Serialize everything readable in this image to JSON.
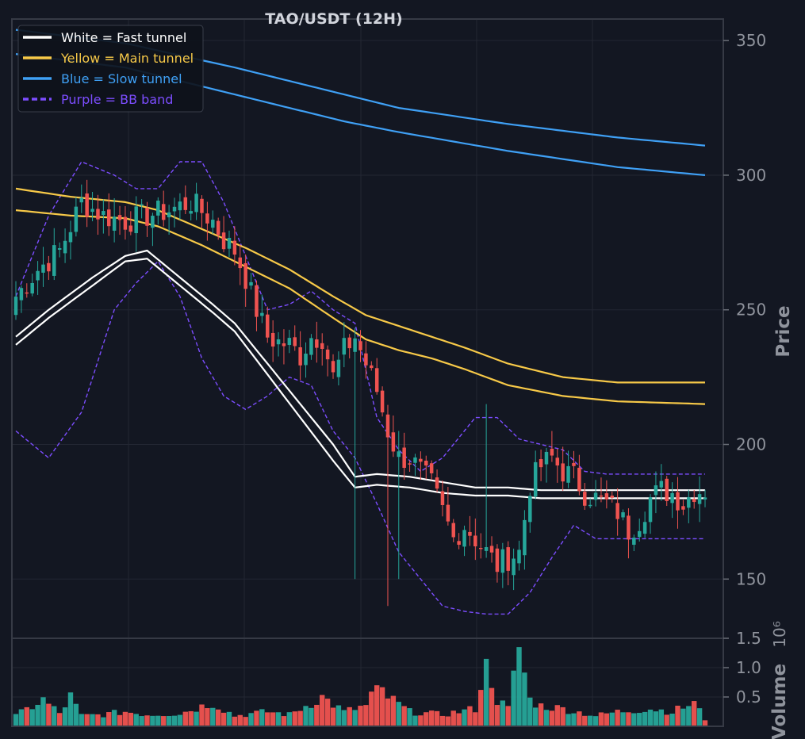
{
  "chart_data": [
    {
      "type": "candlestick",
      "title": "TAO/USDT (12H)",
      "xlabel": "",
      "ylabel": "Price",
      "ylim": [
        128,
        358
      ],
      "yticks": [
        "150",
        "200",
        "250",
        "300",
        "350"
      ],
      "grid": true,
      "legend_position": "top-left",
      "legend": [
        {
          "label": "White = Fast tunnel",
          "color": "#ffffff",
          "style": "solid"
        },
        {
          "label": "Yellow = Main tunnel",
          "color": "#f7c948",
          "style": "solid"
        },
        {
          "label": "Blue = Slow tunnel",
          "color": "#3fa0f5",
          "style": "solid"
        },
        {
          "label": "Purple = BB band",
          "color": "#7c4dff",
          "style": "dashed"
        }
      ],
      "colors": {
        "up": "#26a69a",
        "down": "#ef5350",
        "fast": "#ffffff",
        "main": "#f7c948",
        "slow": "#3fa0f5",
        "bb": "#7c4dff"
      },
      "anchors": {
        "close": [
          [
            0,
            255
          ],
          [
            4,
            265
          ],
          [
            8,
            272
          ],
          [
            12,
            290
          ],
          [
            16,
            285
          ],
          [
            20,
            283
          ],
          [
            24,
            285
          ],
          [
            28,
            287
          ],
          [
            32,
            290
          ],
          [
            36,
            283
          ],
          [
            38,
            276
          ],
          [
            40,
            272
          ],
          [
            42,
            262
          ],
          [
            44,
            250
          ],
          [
            46,
            240
          ],
          [
            48,
            238
          ],
          [
            50,
            237
          ],
          [
            52,
            233
          ],
          [
            54,
            240
          ],
          [
            56,
            240
          ],
          [
            58,
            225
          ],
          [
            60,
            235
          ],
          [
            62,
            240
          ],
          [
            64,
            230
          ],
          [
            66,
            220
          ],
          [
            68,
            205
          ],
          [
            70,
            195
          ],
          [
            72,
            195
          ],
          [
            74,
            190
          ],
          [
            76,
            185
          ],
          [
            78,
            175
          ],
          [
            80,
            165
          ],
          [
            82,
            170
          ],
          [
            84,
            165
          ],
          [
            86,
            160
          ],
          [
            88,
            155
          ],
          [
            90,
            158
          ],
          [
            92,
            160
          ],
          [
            94,
            185
          ],
          [
            96,
            192
          ],
          [
            98,
            195
          ],
          [
            100,
            190
          ],
          [
            102,
            188
          ],
          [
            104,
            182
          ],
          [
            106,
            180
          ],
          [
            108,
            178
          ],
          [
            110,
            175
          ],
          [
            112,
            168
          ],
          [
            114,
            172
          ],
          [
            116,
            180
          ],
          [
            118,
            183
          ],
          [
            120,
            182
          ],
          [
            122,
            178
          ],
          [
            124,
            183
          ],
          [
            126,
            183
          ]
        ],
        "fast_upper": [
          [
            0,
            240
          ],
          [
            6,
            250
          ],
          [
            14,
            262
          ],
          [
            20,
            270
          ],
          [
            24,
            272
          ],
          [
            30,
            262
          ],
          [
            36,
            252
          ],
          [
            40,
            245
          ],
          [
            46,
            230
          ],
          [
            52,
            215
          ],
          [
            58,
            200
          ],
          [
            62,
            188
          ],
          [
            66,
            189
          ],
          [
            72,
            188
          ],
          [
            78,
            186
          ],
          [
            84,
            184
          ],
          [
            90,
            184
          ],
          [
            96,
            183
          ],
          [
            102,
            183
          ],
          [
            108,
            183
          ],
          [
            114,
            183
          ],
          [
            120,
            183
          ],
          [
            126,
            183
          ]
        ],
        "fast_lower": [
          [
            0,
            237
          ],
          [
            6,
            247
          ],
          [
            14,
            259
          ],
          [
            20,
            268
          ],
          [
            24,
            269
          ],
          [
            30,
            259
          ],
          [
            36,
            249
          ],
          [
            40,
            242
          ],
          [
            46,
            226
          ],
          [
            52,
            210
          ],
          [
            58,
            194
          ],
          [
            62,
            184
          ],
          [
            66,
            185
          ],
          [
            72,
            184
          ],
          [
            78,
            182
          ],
          [
            84,
            181
          ],
          [
            90,
            181
          ],
          [
            96,
            180
          ],
          [
            102,
            180
          ],
          [
            108,
            180
          ],
          [
            114,
            180
          ],
          [
            120,
            180
          ],
          [
            126,
            180
          ]
        ],
        "main_upper": [
          [
            0,
            295
          ],
          [
            10,
            292
          ],
          [
            20,
            290
          ],
          [
            26,
            287
          ],
          [
            34,
            280
          ],
          [
            42,
            273
          ],
          [
            50,
            265
          ],
          [
            58,
            255
          ],
          [
            64,
            248
          ],
          [
            70,
            244
          ],
          [
            76,
            240
          ],
          [
            82,
            236
          ],
          [
            90,
            230
          ],
          [
            100,
            225
          ],
          [
            110,
            223
          ],
          [
            126,
            223
          ]
        ],
        "main_lower": [
          [
            0,
            287
          ],
          [
            10,
            285
          ],
          [
            20,
            284
          ],
          [
            26,
            281
          ],
          [
            34,
            274
          ],
          [
            42,
            266
          ],
          [
            50,
            258
          ],
          [
            58,
            247
          ],
          [
            64,
            239
          ],
          [
            70,
            235
          ],
          [
            76,
            232
          ],
          [
            82,
            228
          ],
          [
            90,
            222
          ],
          [
            100,
            218
          ],
          [
            110,
            216
          ],
          [
            126,
            215
          ]
        ],
        "slow_upper": [
          [
            0,
            354
          ],
          [
            20,
            349
          ],
          [
            40,
            340
          ],
          [
            60,
            330
          ],
          [
            70,
            325
          ],
          [
            90,
            319
          ],
          [
            110,
            314
          ],
          [
            126,
            311
          ]
        ],
        "slow_lower": [
          [
            0,
            345
          ],
          [
            20,
            340
          ],
          [
            40,
            330
          ],
          [
            60,
            320
          ],
          [
            70,
            316
          ],
          [
            90,
            309
          ],
          [
            110,
            303
          ],
          [
            126,
            300
          ]
        ],
        "bb_upper": [
          [
            0,
            255
          ],
          [
            6,
            285
          ],
          [
            12,
            305
          ],
          [
            18,
            300
          ],
          [
            22,
            295
          ],
          [
            26,
            295
          ],
          [
            30,
            305
          ],
          [
            34,
            305
          ],
          [
            38,
            290
          ],
          [
            42,
            270
          ],
          [
            46,
            250
          ],
          [
            50,
            252
          ],
          [
            54,
            257
          ],
          [
            58,
            250
          ],
          [
            62,
            245
          ],
          [
            66,
            210
          ],
          [
            70,
            198
          ],
          [
            74,
            190
          ],
          [
            78,
            195
          ],
          [
            84,
            210
          ],
          [
            88,
            210
          ],
          [
            92,
            202
          ],
          [
            96,
            200
          ],
          [
            100,
            198
          ],
          [
            104,
            190
          ],
          [
            108,
            189
          ],
          [
            112,
            189
          ],
          [
            116,
            189
          ],
          [
            126,
            189
          ]
        ],
        "bb_lower": [
          [
            0,
            205
          ],
          [
            6,
            195
          ],
          [
            12,
            212
          ],
          [
            18,
            250
          ],
          [
            22,
            260
          ],
          [
            26,
            268
          ],
          [
            30,
            255
          ],
          [
            34,
            232
          ],
          [
            38,
            218
          ],
          [
            42,
            213
          ],
          [
            46,
            218
          ],
          [
            50,
            225
          ],
          [
            54,
            222
          ],
          [
            58,
            205
          ],
          [
            62,
            195
          ],
          [
            66,
            178
          ],
          [
            70,
            160
          ],
          [
            74,
            150
          ],
          [
            78,
            140
          ],
          [
            82,
            138
          ],
          [
            86,
            137
          ],
          [
            90,
            137
          ],
          [
            94,
            145
          ],
          [
            98,
            158
          ],
          [
            102,
            170
          ],
          [
            106,
            165
          ],
          [
            110,
            165
          ],
          [
            116,
            165
          ],
          [
            126,
            165
          ]
        ]
      },
      "wicks": [
        [
          62,
          150,
          185
        ],
        [
          70,
          150,
          205
        ],
        [
          86,
          200,
          215
        ],
        [
          68,
          140,
          175
        ]
      ]
    },
    {
      "type": "bar",
      "title": "",
      "xlabel": "",
      "ylabel": "Volume",
      "yscale_label": "10⁶",
      "ylim": [
        0,
        1.5
      ],
      "yticks": [
        "0.5",
        "1.0",
        "1.5"
      ],
      "grid": true,
      "volume_anchors": [
        [
          0,
          0.18
        ],
        [
          5,
          0.45
        ],
        [
          8,
          0.22
        ],
        [
          10,
          0.5
        ],
        [
          12,
          0.18
        ],
        [
          16,
          0.2
        ],
        [
          20,
          0.25
        ],
        [
          24,
          0.2
        ],
        [
          30,
          0.22
        ],
        [
          36,
          0.4
        ],
        [
          40,
          0.18
        ],
        [
          46,
          0.25
        ],
        [
          50,
          0.2
        ],
        [
          56,
          0.5
        ],
        [
          60,
          0.25
        ],
        [
          64,
          0.35
        ],
        [
          66,
          0.7
        ],
        [
          68,
          0.5
        ],
        [
          72,
          0.25
        ],
        [
          78,
          0.2
        ],
        [
          84,
          0.3
        ],
        [
          86,
          1.15
        ],
        [
          88,
          0.45
        ],
        [
          90,
          0.3
        ],
        [
          92,
          1.35
        ],
        [
          94,
          0.45
        ],
        [
          96,
          0.35
        ],
        [
          100,
          0.3
        ],
        [
          106,
          0.18
        ],
        [
          110,
          0.25
        ],
        [
          116,
          0.3
        ],
        [
          120,
          0.25
        ],
        [
          124,
          0.4
        ],
        [
          126,
          0.12
        ]
      ]
    }
  ]
}
